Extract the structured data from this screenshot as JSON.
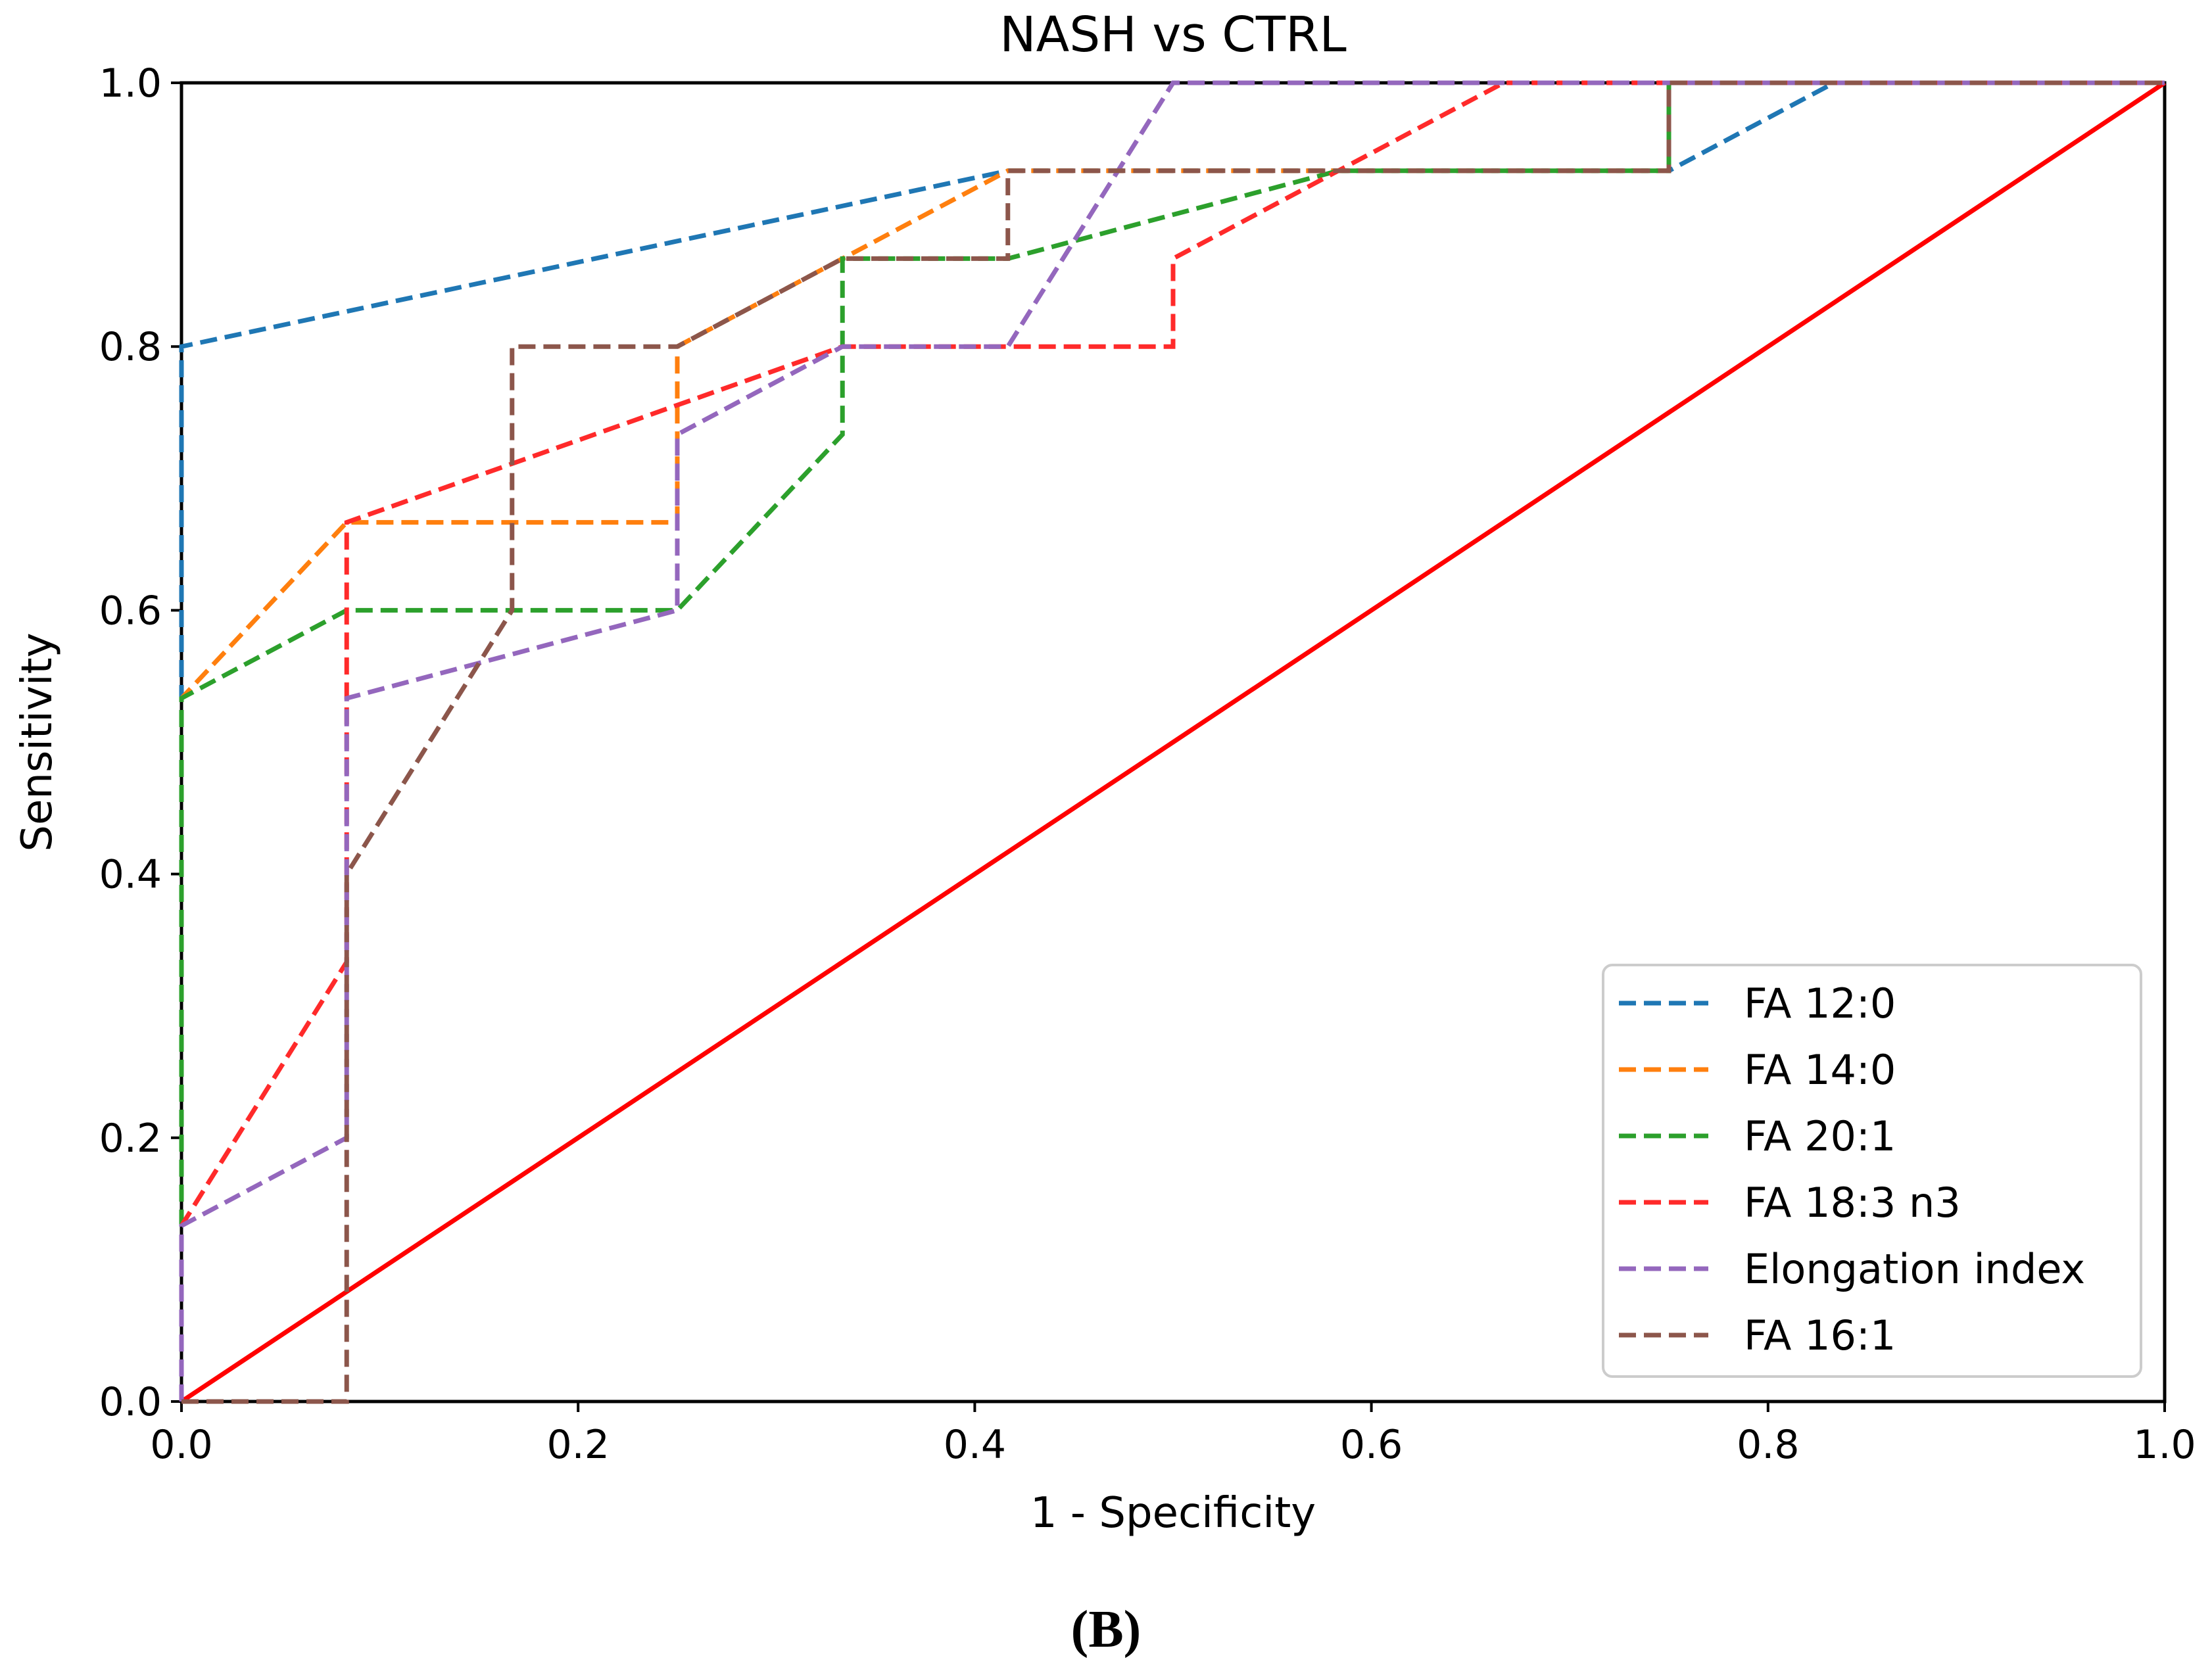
{
  "panel_label": {
    "open": "(",
    "letter": "B",
    "close": ")"
  },
  "chart_data": {
    "type": "line",
    "title": "NASH vs CTRL",
    "xlabel": "1 - Specificity",
    "ylabel": "Sensitivity",
    "xlim": [
      0,
      1
    ],
    "ylim": [
      0,
      1
    ],
    "grid": false,
    "xticks": [
      0.0,
      0.2,
      0.4,
      0.6,
      0.8,
      1.0
    ],
    "yticks": [
      0.0,
      0.2,
      0.4,
      0.6,
      0.8,
      1.0
    ],
    "xtick_labels": [
      "0.0",
      "0.2",
      "0.4",
      "0.6",
      "0.8",
      "1.0"
    ],
    "ytick_labels": [
      "0.0",
      "0.2",
      "0.4",
      "0.6",
      "0.8",
      "1.0"
    ],
    "legend_position": "lower-right",
    "series": [
      {
        "name": "FA 12:0",
        "color": "#1f77b4",
        "style": "dashed",
        "x": [
          0,
          0,
          0,
          0.4167,
          0.75,
          0.8333,
          1.0
        ],
        "y": [
          0,
          0.8,
          0.8,
          0.9333,
          0.9333,
          1.0,
          1.0
        ]
      },
      {
        "name": "FA 14:0",
        "color": "#ff7f0e",
        "style": "dashed",
        "x": [
          0,
          0,
          0.0833,
          0.25,
          0.25,
          0.3333,
          0.4167,
          0.75,
          0.75,
          1.0
        ],
        "y": [
          0,
          0.5333,
          0.6667,
          0.6667,
          0.8,
          0.8667,
          0.9333,
          0.9333,
          1.0,
          1.0
        ]
      },
      {
        "name": "FA 20:1",
        "color": "#2ca02c",
        "style": "dashed",
        "x": [
          0,
          0,
          0.0833,
          0.25,
          0.3333,
          0.3333,
          0.4167,
          0.5833,
          0.75,
          0.75,
          1.0
        ],
        "y": [
          0,
          0.5333,
          0.6,
          0.6,
          0.7333,
          0.8667,
          0.8667,
          0.9333,
          0.9333,
          1.0,
          1.0
        ]
      },
      {
        "name": "FA 18:3 n3",
        "color": "#ff2a2a",
        "style": "dashed",
        "x": [
          0,
          0,
          0.0833,
          0.0833,
          0.3333,
          0.5,
          0.5,
          0.6667,
          1.0
        ],
        "y": [
          0,
          0.1333,
          0.3333,
          0.6667,
          0.8,
          0.8,
          0.8667,
          1.0,
          1.0
        ]
      },
      {
        "name": "Elongation index",
        "color": "#9467bd",
        "style": "dashed",
        "x": [
          0,
          0,
          0.0833,
          0.0833,
          0.25,
          0.25,
          0.3333,
          0.4167,
          0.5,
          1.0
        ],
        "y": [
          0,
          0.1333,
          0.2,
          0.5333,
          0.6,
          0.7333,
          0.8,
          0.8,
          1.0,
          1.0
        ]
      },
      {
        "name": "FA 16:1",
        "color": "#8c564b",
        "style": "dashed",
        "x": [
          0,
          0.0833,
          0.0833,
          0.1667,
          0.1667,
          0.25,
          0.3333,
          0.4167,
          0.4167,
          0.75,
          0.75,
          1.0
        ],
        "y": [
          0,
          0,
          0.4,
          0.6,
          0.8,
          0.8,
          0.8667,
          0.8667,
          0.9333,
          0.9333,
          1.0,
          1.0
        ]
      }
    ],
    "reference_line": {
      "color": "#ff0000",
      "style": "solid",
      "x": [
        0,
        1
      ],
      "y": [
        0,
        1
      ]
    }
  }
}
